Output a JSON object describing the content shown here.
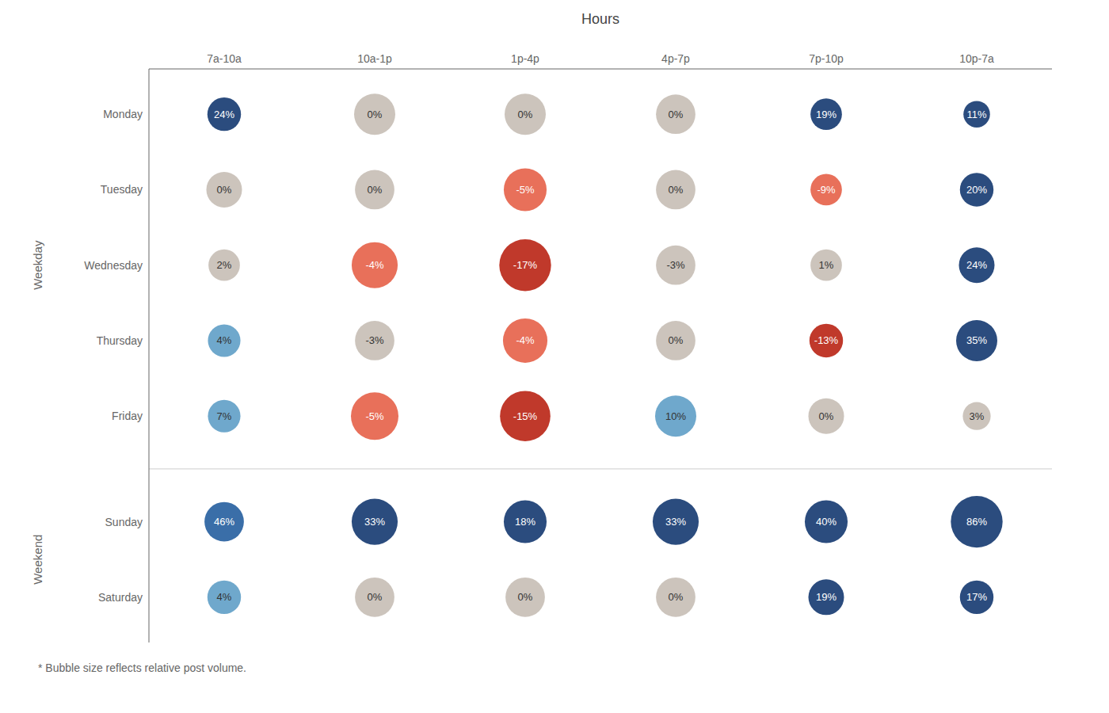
{
  "chart_data": {
    "type": "bubble",
    "title": "Hours",
    "annotations": [
      "* Bubble size reflects relative post volume."
    ],
    "categories": [
      "7a-10a",
      "10a-1p",
      "1p-4p",
      "4p-7p",
      "7p-10p",
      "10p-7a"
    ],
    "data_labels": true,
    "groups": [
      {
        "name": "Weekday",
        "rows": [
          {
            "name": "Monday",
            "values": [
              24,
              0,
              0,
              0,
              19,
              11
            ],
            "value_labels": [
              "24%",
              "0%",
              "0%",
              "0%",
              "19%",
              "11%"
            ],
            "sizes": [
              800,
              1200,
              1200,
              1100,
              700,
              500
            ],
            "colors": [
              "#2b4c7e",
              "#ccc4bc",
              "#ccc4bc",
              "#ccc4bc",
              "#2b4c7e",
              "#2b4c7e"
            ]
          },
          {
            "name": "Tuesday",
            "values": [
              0,
              0,
              -5,
              0,
              -9,
              20
            ],
            "value_labels": [
              "0%",
              "0%",
              "-5%",
              "0%",
              "-9%",
              "20%"
            ],
            "sizes": [
              900,
              1100,
              1300,
              1100,
              700,
              800
            ],
            "colors": [
              "#ccc4bc",
              "#ccc4bc",
              "#e8705a",
              "#ccc4bc",
              "#e8705a",
              "#2b4c7e"
            ]
          },
          {
            "name": "Wednesday",
            "values": [
              2,
              -4,
              -17,
              -3,
              1,
              24
            ],
            "value_labels": [
              "2%",
              "-4%",
              "-17%",
              "-3%",
              "1%",
              "24%"
            ],
            "sizes": [
              700,
              1500,
              1900,
              1100,
              700,
              900
            ],
            "colors": [
              "#ccc4bc",
              "#e8705a",
              "#c0392b",
              "#ccc4bc",
              "#ccc4bc",
              "#2b4c7e"
            ]
          },
          {
            "name": "Thursday",
            "values": [
              4,
              -3,
              -4,
              0,
              -13,
              35
            ],
            "value_labels": [
              "4%",
              "-3%",
              "-4%",
              "0%",
              "-13%",
              "35%"
            ],
            "sizes": [
              750,
              1100,
              1400,
              1100,
              800,
              1200
            ],
            "colors": [
              "#6fa8cc",
              "#ccc4bc",
              "#e8705a",
              "#ccc4bc",
              "#c0392b",
              "#2b4c7e"
            ]
          },
          {
            "name": "Friday",
            "values": [
              7,
              -5,
              -15,
              10,
              0,
              3
            ],
            "value_labels": [
              "7%",
              "-5%",
              "-15%",
              "10%",
              "0%",
              "3%"
            ],
            "sizes": [
              750,
              1600,
              1800,
              1200,
              900,
              550
            ],
            "colors": [
              "#6fa8cc",
              "#e8705a",
              "#c0392b",
              "#6fa8cc",
              "#ccc4bc",
              "#ccc4bc"
            ]
          }
        ]
      },
      {
        "name": "Weekend",
        "rows": [
          {
            "name": "Sunday",
            "values": [
              46,
              33,
              18,
              33,
              40,
              86
            ],
            "value_labels": [
              "46%",
              "33%",
              "18%",
              "33%",
              "40%",
              "86%"
            ],
            "sizes": [
              1100,
              1500,
              1300,
              1500,
              1300,
              1900
            ],
            "colors": [
              "#3a6ea8",
              "#2b4c7e",
              "#2b4c7e",
              "#2b4c7e",
              "#2b4c7e",
              "#2b4c7e"
            ]
          },
          {
            "name": "Saturday",
            "values": [
              4,
              0,
              0,
              0,
              19,
              17
            ],
            "value_labels": [
              "4%",
              "0%",
              "0%",
              "0%",
              "19%",
              "17%"
            ],
            "sizes": [
              800,
              1100,
              1100,
              1100,
              900,
              800
            ],
            "colors": [
              "#6fa8cc",
              "#ccc4bc",
              "#ccc4bc",
              "#ccc4bc",
              "#2b4c7e",
              "#2b4c7e"
            ]
          }
        ]
      }
    ]
  }
}
